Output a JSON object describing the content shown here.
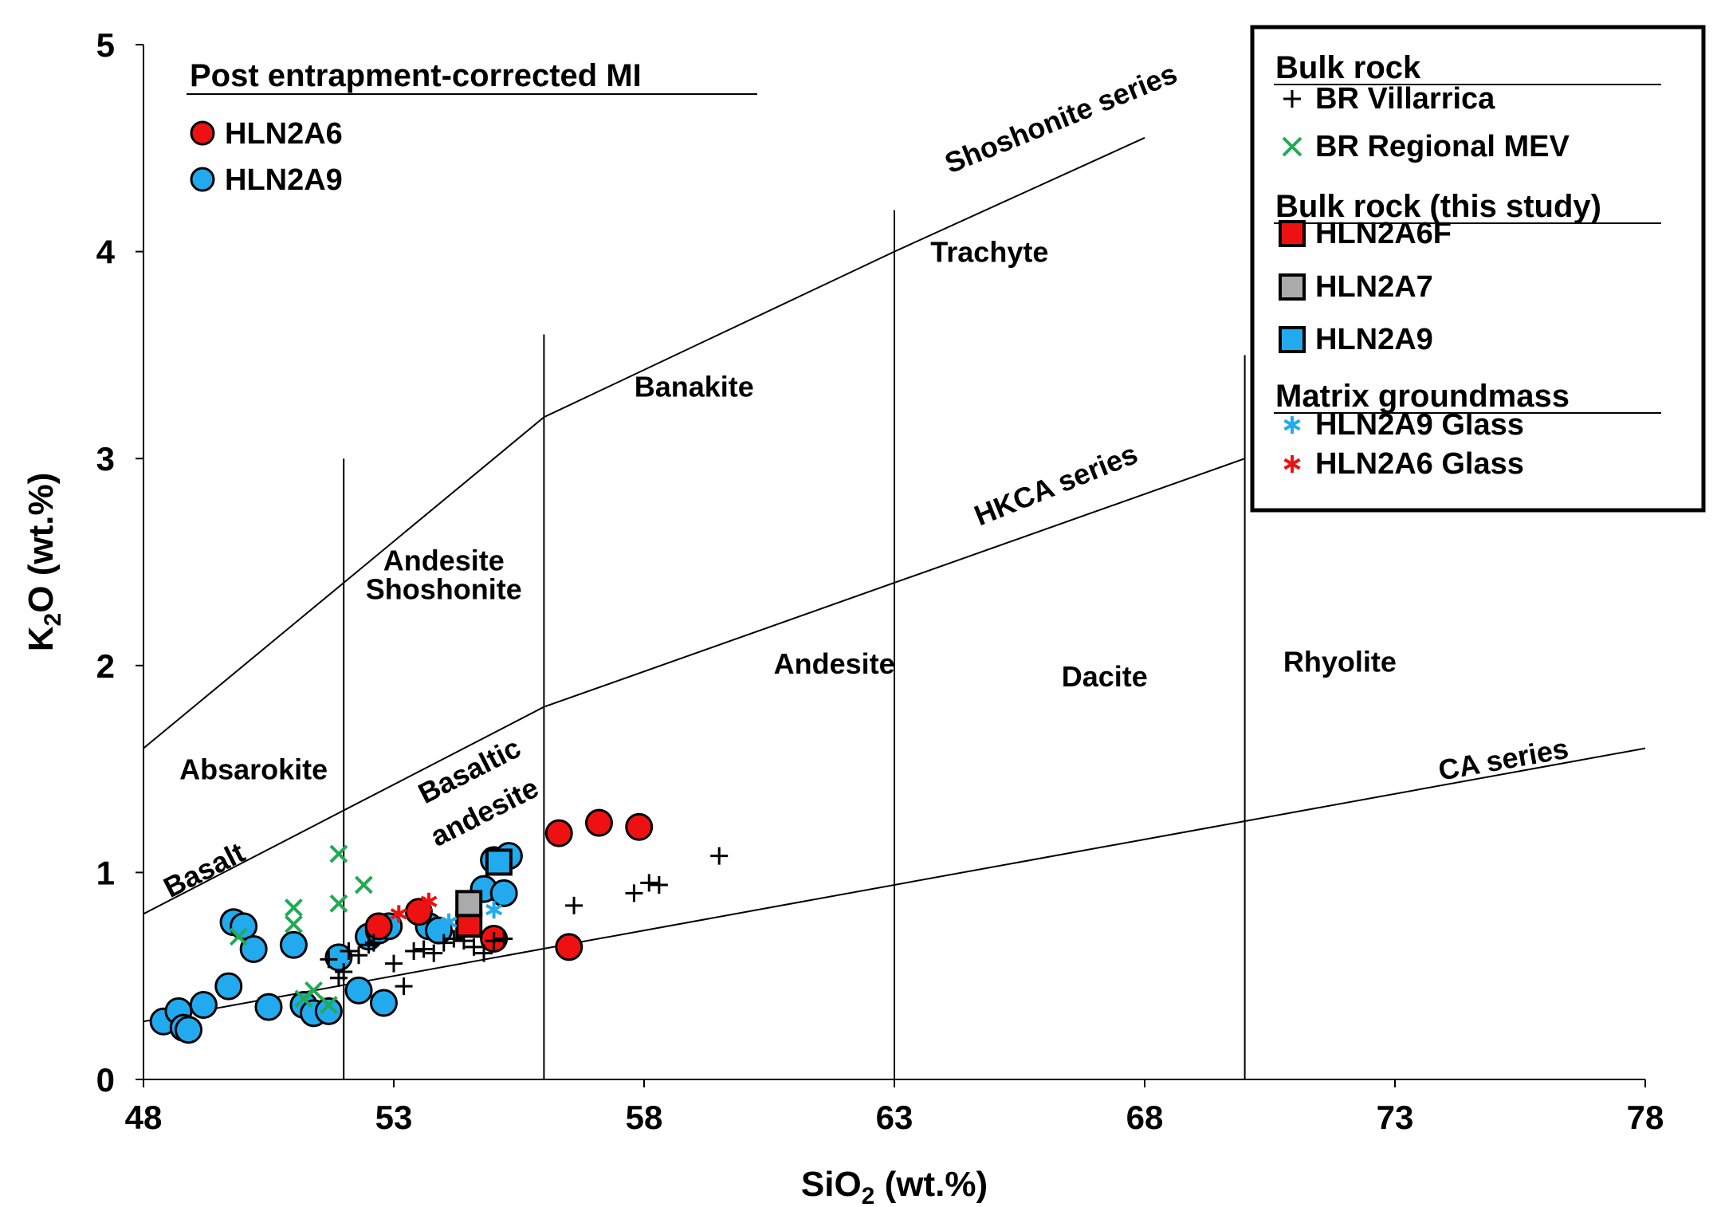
{
  "chart_data": {
    "type": "scatter",
    "title": "",
    "xlabel": {
      "main": "SiO",
      "sub": "2",
      "unit": " (wt.%)"
    },
    "ylabel": {
      "main": "K",
      "sub": "2",
      "tail": "O",
      "unit": " (wt.%)"
    },
    "xlim": [
      48,
      78
    ],
    "ylim": [
      0,
      5
    ],
    "x_ticks": [
      "48",
      "53",
      "58",
      "63",
      "68",
      "73",
      "78"
    ],
    "y_ticks": [
      "0",
      "1",
      "2",
      "3",
      "4",
      "5"
    ],
    "colors": {
      "red": "#ee1111",
      "blue": "#22aaee",
      "gray": "#aaaaaa",
      "green": "#22aa55",
      "black": "#000000",
      "line": "#000000"
    },
    "boundaries": [
      {
        "name": "lower-bound",
        "points": [
          [
            48,
            0.28
          ],
          [
            78,
            1.6
          ]
        ]
      },
      {
        "name": "hkca-boundary",
        "points": [
          [
            48,
            0.8
          ],
          [
            52,
            1.3
          ],
          [
            56,
            1.8
          ],
          [
            63,
            2.4
          ],
          [
            70,
            3.0
          ]
        ]
      },
      {
        "name": "shoshonite-boundary",
        "points": [
          [
            48,
            1.6
          ],
          [
            52,
            2.4
          ],
          [
            56,
            3.2
          ],
          [
            63,
            4.0
          ],
          [
            68,
            4.55
          ]
        ]
      },
      {
        "name": "divider-52",
        "points": [
          [
            52,
            0
          ],
          [
            52,
            3.0
          ]
        ]
      },
      {
        "name": "divider-56",
        "points": [
          [
            56,
            0
          ],
          [
            56,
            3.6
          ]
        ]
      },
      {
        "name": "divider-63",
        "points": [
          [
            63,
            0
          ],
          [
            63,
            4.2
          ]
        ]
      },
      {
        "name": "divider-70",
        "points": [
          [
            70,
            0
          ],
          [
            70,
            3.5
          ]
        ]
      }
    ],
    "field_labels": [
      {
        "text": "Absarokite",
        "x": 50.2,
        "y": 1.45
      },
      {
        "text": "Andesite",
        "x": 54.0,
        "y": 2.46
      },
      {
        "text": "Shoshonite",
        "x": 54.0,
        "y": 2.32
      },
      {
        "text": "Banakite",
        "x": 59.0,
        "y": 3.3
      },
      {
        "text": "Trachyte",
        "x": 64.9,
        "y": 3.95
      },
      {
        "text": "Andesite",
        "x": 61.8,
        "y": 1.96
      },
      {
        "text": "Dacite",
        "x": 67.2,
        "y": 1.9
      },
      {
        "text": "Rhyolite",
        "x": 71.9,
        "y": 1.97
      }
    ],
    "rotated_labels": [
      {
        "text": "Basaltic",
        "x": 54.6,
        "y": 1.45,
        "angle": -27
      },
      {
        "text": "andesite",
        "x": 54.9,
        "y": 1.25,
        "angle": -27
      },
      {
        "text": "Basalt",
        "x": 49.3,
        "y": 0.97,
        "angle": -27
      },
      {
        "text": "Shoshonite series",
        "x": 66.4,
        "y": 4.6,
        "angle": -22
      },
      {
        "text": "HKCA series",
        "x": 66.3,
        "y": 2.83,
        "angle": -22
      },
      {
        "text": "CA series",
        "x": 75.2,
        "y": 1.5,
        "angle": -10
      }
    ],
    "series": [
      {
        "name": "HLN2A9",
        "marker": "circle",
        "color": "blue",
        "points": [
          [
            48.4,
            0.28
          ],
          [
            48.7,
            0.33
          ],
          [
            48.8,
            0.25
          ],
          [
            48.9,
            0.24
          ],
          [
            49.2,
            0.36
          ],
          [
            49.7,
            0.45
          ],
          [
            49.8,
            0.76
          ],
          [
            50.0,
            0.74
          ],
          [
            50.2,
            0.63
          ],
          [
            50.5,
            0.35
          ],
          [
            51.0,
            0.65
          ],
          [
            51.2,
            0.36
          ],
          [
            51.4,
            0.32
          ],
          [
            51.7,
            0.33
          ],
          [
            51.9,
            0.59
          ],
          [
            52.3,
            0.43
          ],
          [
            52.5,
            0.69
          ],
          [
            52.7,
            0.72
          ],
          [
            52.8,
            0.37
          ],
          [
            52.9,
            0.74
          ],
          [
            53.7,
            0.74
          ],
          [
            53.9,
            0.72
          ],
          [
            54.8,
            0.92
          ],
          [
            55.0,
            1.06
          ],
          [
            55.2,
            0.9
          ],
          [
            55.3,
            1.08
          ]
        ]
      },
      {
        "name": "HLN2A6",
        "marker": "circle",
        "color": "red",
        "points": [
          [
            52.7,
            0.74
          ],
          [
            53.5,
            0.81
          ],
          [
            55.0,
            0.68
          ],
          [
            56.3,
            1.19
          ],
          [
            56.5,
            0.64
          ],
          [
            57.1,
            1.24
          ],
          [
            57.9,
            1.22
          ]
        ]
      },
      {
        "name": "BR Villarrica",
        "marker": "plus",
        "color": "black",
        "points": [
          [
            51.7,
            0.58
          ],
          [
            51.9,
            0.49
          ],
          [
            52.0,
            0.52
          ],
          [
            52.1,
            0.62
          ],
          [
            52.3,
            0.6
          ],
          [
            52.5,
            0.65
          ],
          [
            52.6,
            0.66
          ],
          [
            53.0,
            0.56
          ],
          [
            53.2,
            0.45
          ],
          [
            53.4,
            0.62
          ],
          [
            53.6,
            0.63
          ],
          [
            53.8,
            0.61
          ],
          [
            54.0,
            0.66
          ],
          [
            54.2,
            0.68
          ],
          [
            54.4,
            0.67
          ],
          [
            54.6,
            0.64
          ],
          [
            54.8,
            0.61
          ],
          [
            55.0,
            0.67
          ],
          [
            55.2,
            0.68
          ],
          [
            56.6,
            0.84
          ],
          [
            57.8,
            0.9
          ],
          [
            58.1,
            0.95
          ],
          [
            58.3,
            0.94
          ],
          [
            59.5,
            1.08
          ]
        ]
      },
      {
        "name": "BR Regional MEV",
        "marker": "x",
        "color": "green",
        "points": [
          [
            49.9,
            0.69
          ],
          [
            51.0,
            0.75
          ],
          [
            51.0,
            0.83
          ],
          [
            51.2,
            0.39
          ],
          [
            51.4,
            0.43
          ],
          [
            51.7,
            0.36
          ],
          [
            51.9,
            0.85
          ],
          [
            51.9,
            1.09
          ],
          [
            52.4,
            0.94
          ]
        ]
      },
      {
        "name": "HLN2A6F",
        "marker": "square",
        "color": "red",
        "points": [
          [
            54.5,
            0.75
          ]
        ]
      },
      {
        "name": "HLN2A7",
        "marker": "square",
        "color": "gray",
        "points": [
          [
            54.5,
            0.85
          ]
        ]
      },
      {
        "name": "HLN2A9",
        "marker": "square",
        "color": "blue",
        "points": [
          [
            55.1,
            1.05
          ]
        ]
      },
      {
        "name": "HLN2A9 Glass",
        "marker": "asterisk",
        "color": "blue",
        "points": [
          [
            54.1,
            0.76
          ],
          [
            55.0,
            0.82
          ]
        ]
      },
      {
        "name": "HLN2A6 Glass",
        "marker": "asterisk",
        "color": "red",
        "points": [
          [
            53.1,
            0.8
          ],
          [
            53.6,
            0.84
          ],
          [
            53.7,
            0.86
          ]
        ]
      }
    ],
    "legend_left": {
      "title": "Post entrapment-corrected MI",
      "items": [
        {
          "label": "HLN2A6",
          "marker": "circle",
          "color": "red"
        },
        {
          "label": "HLN2A9",
          "marker": "circle",
          "color": "blue"
        }
      ]
    },
    "legend_right": {
      "position": "top-right",
      "groups": [
        {
          "title": "Bulk rock",
          "items": [
            {
              "label": "BR Villarrica",
              "marker": "plus",
              "color": "black"
            },
            {
              "label": "BR Regional MEV",
              "marker": "x",
              "color": "green"
            }
          ]
        },
        {
          "title": "Bulk rock (this study)",
          "items": [
            {
              "label": "HLN2A6F",
              "marker": "square",
              "color": "red"
            },
            {
              "label": "HLN2A7",
              "marker": "square",
              "color": "gray"
            },
            {
              "label": "HLN2A9",
              "marker": "square",
              "color": "blue"
            }
          ]
        },
        {
          "title": "Matrix groundmass",
          "items": [
            {
              "label": "HLN2A9 Glass",
              "marker": "asterisk",
              "color": "blue"
            },
            {
              "label": "HLN2A6 Glass",
              "marker": "asterisk",
              "color": "red"
            }
          ]
        }
      ]
    }
  }
}
